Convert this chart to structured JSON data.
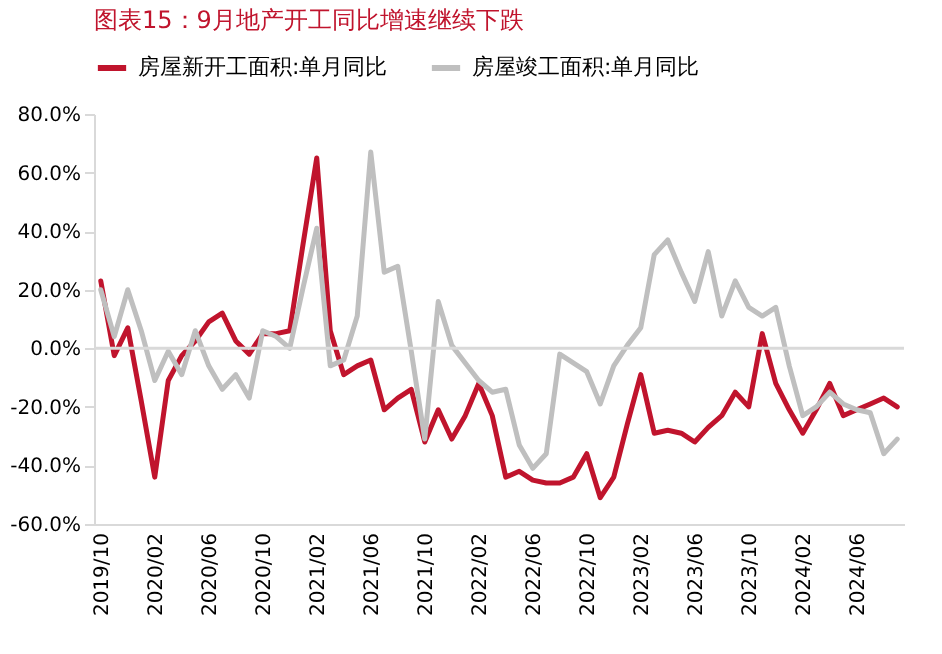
{
  "chart_data": {
    "type": "line",
    "title": "图表15：9月地产开工同比增速继续下跌",
    "categories": [
      "2019/10",
      null,
      null,
      null,
      "2020/02",
      null,
      null,
      null,
      "2020/06",
      null,
      null,
      null,
      "2020/10",
      null,
      null,
      null,
      "2021/02",
      null,
      null,
      null,
      "2021/06",
      null,
      null,
      null,
      "2021/10",
      null,
      null,
      null,
      "2022/02",
      null,
      null,
      null,
      "2022/06",
      null,
      null,
      null,
      "2022/10",
      null,
      null,
      null,
      "2023/02",
      null,
      null,
      null,
      "2023/06",
      null,
      null,
      null,
      "2023/10",
      null,
      null,
      null,
      "2024/02",
      null,
      null,
      null,
      "2024/06",
      null,
      null,
      null
    ],
    "series": [
      {
        "name": "房屋新开工面积:单月同比",
        "color": "#c0142d",
        "values": [
          23,
          -2.5,
          7,
          -18,
          -44,
          -11,
          -2.5,
          2.5,
          9,
          12,
          2.5,
          -2,
          5,
          5,
          6,
          36,
          65,
          6,
          -9,
          -6,
          -4,
          -21,
          -17,
          -14,
          -32,
          -21,
          -31,
          -23,
          -12,
          -23,
          -44,
          -42,
          -45,
          -46,
          -46,
          -44,
          -36,
          -51,
          -44,
          -26,
          -9,
          -29,
          -28,
          -29,
          -32,
          -27,
          -23,
          -15,
          -20,
          5,
          -12,
          -21,
          -29,
          -21,
          -12,
          -23,
          -21,
          -19,
          -17,
          -20
        ]
      },
      {
        "name": "房屋竣工面积:单月同比",
        "color": "#bfbfbf",
        "values": [
          20,
          4,
          20,
          6,
          -11,
          -1,
          -9,
          6,
          -6,
          -14,
          -9,
          -17,
          6,
          4,
          0,
          21,
          41,
          -6,
          -4,
          11,
          67,
          26,
          28,
          -1,
          -31,
          16,
          1,
          -5,
          -11,
          -15,
          -14,
          -33,
          -41,
          -36,
          -2,
          -5,
          -8,
          -19,
          -6,
          1,
          7,
          32,
          37,
          26,
          16,
          33,
          11,
          23,
          14,
          11,
          14,
          -6,
          -23,
          -20,
          -15,
          -19,
          -21,
          -22,
          -36,
          -31
        ]
      }
    ],
    "ylim": [
      -60,
      80
    ],
    "yticks": [
      {
        "value": -60,
        "label": "-60.0%"
      },
      {
        "value": -40,
        "label": "-40.0%"
      },
      {
        "value": -20,
        "label": "-20.0%"
      },
      {
        "value": 0,
        "label": "0.0%"
      },
      {
        "value": 20,
        "label": "20.0%"
      },
      {
        "value": 40,
        "label": "40.0%"
      },
      {
        "value": 60,
        "label": "60.0%"
      },
      {
        "value": 80,
        "label": "80.0%"
      }
    ],
    "ref_lines": [
      {
        "axis": "y",
        "value": 0,
        "color": "#d9d9d9"
      }
    ],
    "legend": "top",
    "marker": "none",
    "line_style": "solid"
  }
}
